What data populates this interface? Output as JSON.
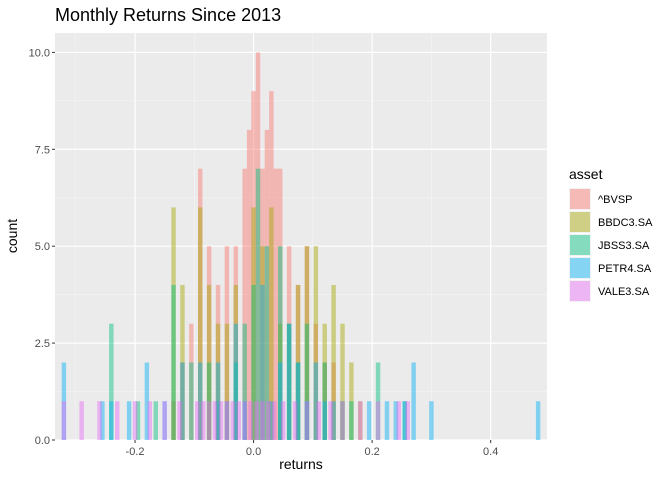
{
  "chart_data": {
    "type": "histogram",
    "title": "Monthly Returns Since 2013",
    "xlabel": "returns",
    "ylabel": "count",
    "xlim": [
      -0.335,
      0.495
    ],
    "ylim": [
      0,
      10.5
    ],
    "x_ticks": [
      {
        "value": -0.2,
        "label": "-0.2"
      },
      {
        "value": 0.0,
        "label": "0.0"
      },
      {
        "value": 0.2,
        "label": "0.2"
      },
      {
        "value": 0.4,
        "label": "0.4"
      }
    ],
    "y_ticks": [
      {
        "value": 0.0,
        "label": "0.0"
      },
      {
        "value": 2.5,
        "label": "2.5"
      },
      {
        "value": 5.0,
        "label": "5.0"
      },
      {
        "value": 7.5,
        "label": "7.5"
      },
      {
        "value": 10.0,
        "label": "10.0"
      }
    ],
    "grid": true,
    "legend_title": "asset",
    "legend_position": "right",
    "bin_width": 0.0075,
    "series": [
      {
        "name": "^BVSP",
        "color": "#F8766D",
        "bins": [
          [
            -0.135,
            1
          ],
          [
            -0.12,
            2
          ],
          [
            -0.105,
            3
          ],
          [
            -0.09,
            7
          ],
          [
            -0.075,
            5
          ],
          [
            -0.06,
            4
          ],
          [
            -0.045,
            5
          ],
          [
            -0.03,
            5
          ],
          [
            -0.015,
            7
          ],
          [
            -0.0075,
            8
          ],
          [
            0.0,
            9
          ],
          [
            0.0075,
            10
          ],
          [
            0.015,
            7
          ],
          [
            0.0225,
            8
          ],
          [
            0.03,
            9
          ],
          [
            0.0375,
            7
          ],
          [
            0.045,
            7
          ],
          [
            0.06,
            5
          ],
          [
            0.075,
            4
          ],
          [
            0.09,
            5
          ],
          [
            0.105,
            3
          ],
          [
            0.12,
            2
          ],
          [
            0.135,
            2
          ]
        ]
      },
      {
        "name": "BBDC3.SA",
        "color": "#A3A500",
        "bins": [
          [
            -0.135,
            6
          ],
          [
            -0.12,
            4
          ],
          [
            -0.09,
            6
          ],
          [
            -0.075,
            4
          ],
          [
            -0.06,
            3
          ],
          [
            -0.045,
            3
          ],
          [
            -0.03,
            4
          ],
          [
            0.0,
            6
          ],
          [
            0.015,
            5
          ],
          [
            0.03,
            6
          ],
          [
            0.045,
            3
          ],
          [
            0.06,
            3
          ],
          [
            0.075,
            4
          ],
          [
            0.09,
            5
          ],
          [
            0.105,
            5
          ],
          [
            0.12,
            3
          ],
          [
            0.135,
            4
          ],
          [
            0.15,
            3
          ],
          [
            0.165,
            2
          ],
          [
            0.18,
            1
          ]
        ]
      },
      {
        "name": "JBSS3.SA",
        "color": "#00BF7D",
        "bins": [
          [
            -0.24,
            3
          ],
          [
            -0.195,
            1
          ],
          [
            -0.165,
            1
          ],
          [
            -0.135,
            4
          ],
          [
            -0.105,
            2
          ],
          [
            -0.075,
            2
          ],
          [
            -0.06,
            1
          ],
          [
            -0.03,
            2
          ],
          [
            -0.015,
            3
          ],
          [
            0.0,
            4
          ],
          [
            0.0075,
            7
          ],
          [
            0.0225,
            5
          ],
          [
            0.045,
            5
          ],
          [
            0.06,
            3
          ],
          [
            0.075,
            2
          ],
          [
            0.09,
            3
          ],
          [
            0.12,
            2
          ],
          [
            0.15,
            1
          ],
          [
            0.165,
            1
          ],
          [
            0.21,
            2
          ],
          [
            0.255,
            1
          ]
        ]
      },
      {
        "name": "PETR4.SA",
        "color": "#00B0F6",
        "bins": [
          [
            -0.32,
            2
          ],
          [
            -0.255,
            1
          ],
          [
            -0.24,
            1
          ],
          [
            -0.21,
            1
          ],
          [
            -0.18,
            2
          ],
          [
            -0.15,
            1
          ],
          [
            -0.12,
            2
          ],
          [
            -0.09,
            2
          ],
          [
            -0.06,
            2
          ],
          [
            -0.045,
            1
          ],
          [
            -0.03,
            3
          ],
          [
            -0.015,
            1
          ],
          [
            0.015,
            4
          ],
          [
            0.03,
            1
          ],
          [
            0.045,
            2
          ],
          [
            0.06,
            3
          ],
          [
            0.075,
            2
          ],
          [
            0.09,
            1
          ],
          [
            0.105,
            2
          ],
          [
            0.12,
            1
          ],
          [
            0.135,
            1
          ],
          [
            0.195,
            1
          ],
          [
            0.225,
            1
          ],
          [
            0.24,
            1
          ],
          [
            0.255,
            1
          ],
          [
            0.27,
            2
          ],
          [
            0.3,
            1
          ],
          [
            0.48,
            1
          ]
        ]
      },
      {
        "name": "VALE3.SA",
        "color": "#E76BF3",
        "bins": [
          [
            -0.32,
            1
          ],
          [
            -0.29,
            1
          ],
          [
            -0.26,
            1
          ],
          [
            -0.23,
            1
          ],
          [
            -0.2,
            1
          ],
          [
            -0.175,
            1
          ],
          [
            -0.15,
            1
          ],
          [
            -0.125,
            1
          ],
          [
            -0.095,
            1
          ],
          [
            -0.085,
            1
          ],
          [
            -0.075,
            1
          ],
          [
            -0.065,
            1
          ],
          [
            -0.055,
            1
          ],
          [
            -0.045,
            1
          ],
          [
            -0.035,
            1
          ],
          [
            -0.025,
            1
          ],
          [
            -0.015,
            1
          ],
          [
            -0.005,
            1
          ],
          [
            0.005,
            1
          ],
          [
            0.015,
            1
          ],
          [
            0.025,
            1
          ],
          [
            0.035,
            1
          ],
          [
            0.05,
            1
          ],
          [
            0.07,
            1
          ],
          [
            0.09,
            1
          ],
          [
            0.11,
            1
          ],
          [
            0.13,
            1
          ],
          [
            0.15,
            1
          ],
          [
            0.18,
            1
          ],
          [
            0.21,
            1
          ],
          [
            0.245,
            1
          ],
          [
            0.26,
            1
          ]
        ]
      }
    ]
  }
}
